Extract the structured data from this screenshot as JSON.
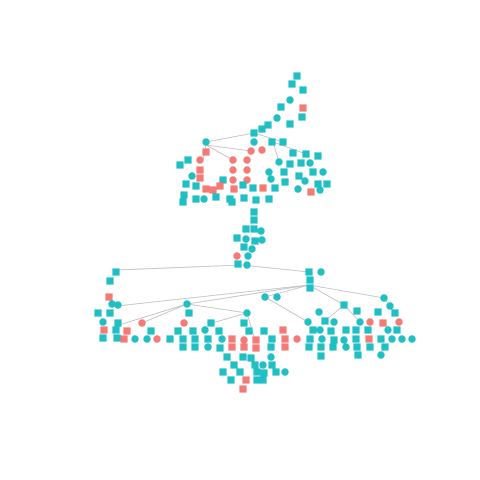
{
  "diagram": {
    "type": "pedigree",
    "colors": {
      "teal": "#1fbfc3",
      "salmon": "#f47a76",
      "edge": "#bdbdbd",
      "background": "#ffffff"
    },
    "legend": {
      "square": "male",
      "circle": "female"
    },
    "node_count_approx": 230,
    "labels": []
  }
}
